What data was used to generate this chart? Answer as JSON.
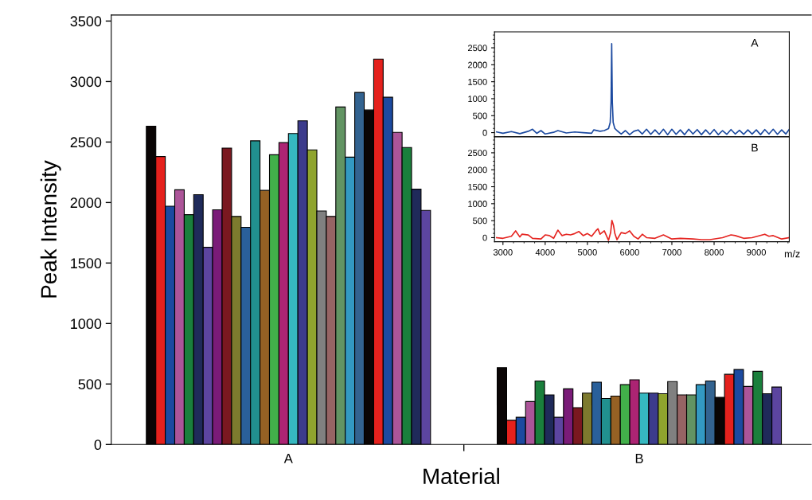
{
  "chart_data": [
    {
      "type": "bar",
      "xlabel": "Material",
      "ylabel": "Peak Intensity",
      "categories": [
        "A",
        "B"
      ],
      "ylim": [
        0,
        3550
      ],
      "yticks": [
        0,
        500,
        1000,
        1500,
        2000,
        2500,
        3000,
        3500
      ],
      "series": [
        {
          "color": "#0a0505",
          "values": [
            2630,
            635
          ]
        },
        {
          "color": "#e5211d",
          "values": [
            2380,
            200
          ]
        },
        {
          "color": "#1c4aa0",
          "values": [
            1970,
            225
          ]
        },
        {
          "color": "#ac5599",
          "values": [
            2105,
            355
          ]
        },
        {
          "color": "#1a7f3c",
          "values": [
            1900,
            525
          ]
        },
        {
          "color": "#1f2a5a",
          "values": [
            2065,
            410
          ]
        },
        {
          "color": "#5c45a0",
          "values": [
            1630,
            225
          ]
        },
        {
          "color": "#7a1b78",
          "values": [
            1940,
            460
          ]
        },
        {
          "color": "#7a1820",
          "values": [
            2450,
            305
          ]
        },
        {
          "color": "#7d7a2e",
          "values": [
            1885,
            425
          ]
        },
        {
          "color": "#2a609a",
          "values": [
            1795,
            515
          ]
        },
        {
          "color": "#21908f",
          "values": [
            2510,
            380
          ]
        },
        {
          "color": "#956124",
          "values": [
            2100,
            400
          ]
        },
        {
          "color": "#42b04a",
          "values": [
            2395,
            495
          ]
        },
        {
          "color": "#ac2473",
          "values": [
            2495,
            535
          ]
        },
        {
          "color": "#36b8c0",
          "values": [
            2570,
            425
          ]
        },
        {
          "color": "#3c3b8c",
          "values": [
            2675,
            425
          ]
        },
        {
          "color": "#8fa42e",
          "values": [
            2435,
            420
          ]
        },
        {
          "color": "#808080",
          "values": [
            1930,
            520
          ]
        },
        {
          "color": "#966464",
          "values": [
            1885,
            410
          ]
        },
        {
          "color": "#629463",
          "values": [
            2790,
            410
          ]
        },
        {
          "color": "#3399c2",
          "values": [
            2375,
            495
          ]
        },
        {
          "color": "#336390",
          "values": [
            2910,
            525
          ]
        },
        {
          "color": "#0a0505",
          "values": [
            2765,
            390
          ]
        },
        {
          "color": "#e5211d",
          "values": [
            3185,
            580
          ]
        },
        {
          "color": "#1c4aa0",
          "values": [
            2870,
            620
          ]
        },
        {
          "color": "#ac5599",
          "values": [
            2580,
            480
          ]
        },
        {
          "color": "#1a7f3c",
          "values": [
            2455,
            605
          ]
        },
        {
          "color": "#1f2a5a",
          "values": [
            2110,
            420
          ]
        },
        {
          "color": "#5c45a0",
          "values": [
            1935,
            475
          ]
        }
      ]
    },
    {
      "type": "line",
      "annotations": [
        "A"
      ],
      "xlim": [
        2800,
        9780
      ],
      "xticks": [
        3000,
        4000,
        5000,
        6000,
        7000,
        8000,
        9000
      ],
      "ylim": [
        -120,
        2970
      ],
      "yticks": [
        0,
        500,
        1000,
        1500,
        2000,
        2500
      ],
      "tick_labels": "y",
      "series": [
        {
          "color": "#1c4aa0",
          "x": [
            2850,
            3000,
            3200,
            3400,
            3600,
            3700,
            3800,
            3900,
            4000,
            4200,
            4300,
            4500,
            4700,
            4900,
            5100,
            5150,
            5300,
            5400,
            5500,
            5540,
            5560,
            5575,
            5590,
            5610,
            5650,
            5700,
            5800,
            5900,
            6000,
            6100,
            6200,
            6300,
            6400,
            6500,
            6600,
            6700,
            6800,
            6900,
            7000,
            7100,
            7200,
            7300,
            7400,
            7500,
            7600,
            7700,
            7800,
            7900,
            8000,
            8100,
            8200,
            8300,
            8400,
            8500,
            8600,
            8700,
            8800,
            8900,
            9000,
            9100,
            9200,
            9300,
            9400,
            9500,
            9600,
            9700,
            9780
          ],
          "values": [
            20,
            -20,
            30,
            -30,
            40,
            100,
            -20,
            60,
            -40,
            10,
            60,
            -10,
            20,
            0,
            -20,
            80,
            40,
            60,
            120,
            300,
            900,
            2620,
            900,
            300,
            120,
            60,
            -40,
            60,
            -60,
            40,
            80,
            -40,
            100,
            -50,
            80,
            -50,
            100,
            -60,
            100,
            -50,
            80,
            -60,
            100,
            -40,
            90,
            -60,
            80,
            -50,
            90,
            -60,
            60,
            -50,
            90,
            -40,
            70,
            -50,
            80,
            -40,
            80,
            -60,
            90,
            -40,
            100,
            -50,
            80,
            -40,
            100
          ]
        }
      ]
    },
    {
      "type": "line",
      "annotations": [
        "B"
      ],
      "xlabel": "m/z",
      "xlim": [
        2800,
        9780
      ],
      "xticks": [
        3000,
        4000,
        5000,
        6000,
        7000,
        8000,
        9000
      ],
      "ylim": [
        -120,
        2970
      ],
      "yticks": [
        0,
        500,
        1000,
        1500,
        2000,
        2500
      ],
      "series": [
        {
          "color": "#e52420",
          "x": [
            2850,
            3000,
            3200,
            3300,
            3400,
            3450,
            3600,
            3700,
            3900,
            4000,
            4100,
            4200,
            4300,
            4400,
            4500,
            4600,
            4700,
            4800,
            4900,
            5000,
            5100,
            5200,
            5250,
            5300,
            5400,
            5500,
            5550,
            5580,
            5620,
            5650,
            5700,
            5800,
            5900,
            6000,
            6100,
            6200,
            6300,
            6400,
            6600,
            6800,
            7000,
            7200,
            7500,
            7700,
            7900,
            8200,
            8400,
            8500,
            8700,
            8900,
            9200,
            9300,
            9400,
            9600,
            9780
          ],
          "values": [
            0,
            -20,
            40,
            200,
            20,
            100,
            80,
            -20,
            -40,
            80,
            60,
            -20,
            220,
            60,
            100,
            80,
            120,
            180,
            60,
            120,
            40,
            200,
            260,
            100,
            200,
            -80,
            150,
            510,
            350,
            120,
            -60,
            150,
            120,
            200,
            40,
            -40,
            100,
            0,
            -20,
            80,
            -40,
            -20,
            -40,
            -60,
            -60,
            0,
            80,
            60,
            -20,
            0,
            100,
            40,
            60,
            -40,
            0
          ]
        }
      ]
    }
  ]
}
